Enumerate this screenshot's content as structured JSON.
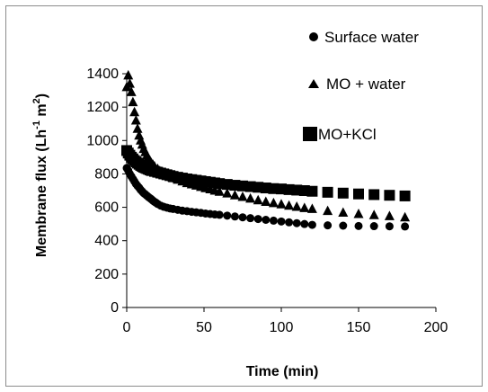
{
  "chart_data": {
    "type": "scatter",
    "xlabel": "Time (min)",
    "ylabel_main": "Membrane flux (Lh",
    "ylabel_sup1": "-1",
    "ylabel_mid": " m",
    "ylabel_sup2": "2",
    "ylabel_end": ")",
    "xlim": [
      0,
      200
    ],
    "ylim": [
      0,
      1400
    ],
    "x_ticks": [
      0,
      50,
      100,
      150,
      200
    ],
    "y_ticks": [
      0,
      200,
      400,
      600,
      800,
      1000,
      1200,
      1400
    ],
    "grid": false,
    "legend_position": "top-right",
    "series": [
      {
        "name": "Surface water",
        "marker": "circle",
        "color": "#000000",
        "points": [
          [
            0,
            835
          ],
          [
            1,
            820
          ],
          [
            2,
            800
          ],
          [
            3,
            785
          ],
          [
            4,
            770
          ],
          [
            5,
            755
          ],
          [
            6,
            740
          ],
          [
            7,
            728
          ],
          [
            8,
            718
          ],
          [
            9,
            705
          ],
          [
            10,
            695
          ],
          [
            11,
            685
          ],
          [
            12,
            678
          ],
          [
            13,
            670
          ],
          [
            14,
            662
          ],
          [
            15,
            655
          ],
          [
            16,
            648
          ],
          [
            17,
            640
          ],
          [
            18,
            633
          ],
          [
            19,
            627
          ],
          [
            20,
            620
          ],
          [
            22,
            610
          ],
          [
            24,
            603
          ],
          [
            26,
            598
          ],
          [
            28,
            593
          ],
          [
            30,
            590
          ],
          [
            33,
            585
          ],
          [
            36,
            580
          ],
          [
            39,
            577
          ],
          [
            42,
            573
          ],
          [
            45,
            570
          ],
          [
            48,
            567
          ],
          [
            51,
            563
          ],
          [
            54,
            560
          ],
          [
            57,
            557
          ],
          [
            60,
            555
          ],
          [
            65,
            550
          ],
          [
            70,
            545
          ],
          [
            75,
            540
          ],
          [
            80,
            535
          ],
          [
            85,
            530
          ],
          [
            90,
            525
          ],
          [
            95,
            520
          ],
          [
            100,
            515
          ],
          [
            105,
            510
          ],
          [
            110,
            505
          ],
          [
            115,
            500
          ],
          [
            120,
            495
          ],
          [
            130,
            492
          ],
          [
            140,
            490
          ],
          [
            150,
            488
          ],
          [
            160,
            487
          ],
          [
            170,
            486
          ],
          [
            180,
            485
          ]
        ]
      },
      {
        "name": "MO + water",
        "marker": "triangle",
        "color": "#000000",
        "points": [
          [
            0,
            1320
          ],
          [
            1,
            1390
          ],
          [
            2,
            1340
          ],
          [
            3,
            1290
          ],
          [
            4,
            1230
          ],
          [
            5,
            1170
          ],
          [
            6,
            1120
          ],
          [
            7,
            1070
          ],
          [
            8,
            1030
          ],
          [
            9,
            1000
          ],
          [
            10,
            975
          ],
          [
            11,
            950
          ],
          [
            12,
            930
          ],
          [
            13,
            910
          ],
          [
            14,
            895
          ],
          [
            15,
            880
          ],
          [
            16,
            865
          ],
          [
            17,
            855
          ],
          [
            18,
            845
          ],
          [
            20,
            830
          ],
          [
            22,
            815
          ],
          [
            24,
            805
          ],
          [
            26,
            795
          ],
          [
            28,
            785
          ],
          [
            30,
            775
          ],
          [
            33,
            765
          ],
          [
            36,
            755
          ],
          [
            39,
            745
          ],
          [
            42,
            738
          ],
          [
            45,
            730
          ],
          [
            48,
            722
          ],
          [
            51,
            715
          ],
          [
            54,
            708
          ],
          [
            57,
            700
          ],
          [
            60,
            693
          ],
          [
            65,
            683
          ],
          [
            70,
            672
          ],
          [
            75,
            662
          ],
          [
            80,
            652
          ],
          [
            85,
            642
          ],
          [
            90,
            633
          ],
          [
            95,
            625
          ],
          [
            100,
            618
          ],
          [
            105,
            610
          ],
          [
            110,
            603
          ],
          [
            115,
            596
          ],
          [
            120,
            590
          ],
          [
            130,
            578
          ],
          [
            140,
            568
          ],
          [
            150,
            560
          ],
          [
            160,
            553
          ],
          [
            170,
            547
          ],
          [
            180,
            540
          ]
        ]
      },
      {
        "name": "MO+KCl",
        "marker": "square",
        "color": "#000000",
        "points": [
          [
            0,
            940
          ],
          [
            1,
            925
          ],
          [
            2,
            912
          ],
          [
            3,
            900
          ],
          [
            4,
            890
          ],
          [
            5,
            880
          ],
          [
            6,
            872
          ],
          [
            7,
            865
          ],
          [
            8,
            858
          ],
          [
            9,
            851
          ],
          [
            10,
            845
          ],
          [
            11,
            840
          ],
          [
            12,
            836
          ],
          [
            13,
            832
          ],
          [
            14,
            828
          ],
          [
            15,
            824
          ],
          [
            16,
            820
          ],
          [
            18,
            815
          ],
          [
            20,
            810
          ],
          [
            22,
            805
          ],
          [
            24,
            800
          ],
          [
            26,
            795
          ],
          [
            28,
            790
          ],
          [
            30,
            785
          ],
          [
            33,
            780
          ],
          [
            36,
            775
          ],
          [
            39,
            770
          ],
          [
            42,
            766
          ],
          [
            45,
            762
          ],
          [
            48,
            758
          ],
          [
            51,
            754
          ],
          [
            54,
            750
          ],
          [
            57,
            746
          ],
          [
            60,
            742
          ],
          [
            65,
            737
          ],
          [
            70,
            732
          ],
          [
            75,
            728
          ],
          [
            80,
            724
          ],
          [
            85,
            720
          ],
          [
            90,
            716
          ],
          [
            95,
            712
          ],
          [
            100,
            710
          ],
          [
            105,
            706
          ],
          [
            110,
            703
          ],
          [
            115,
            700
          ],
          [
            120,
            696
          ],
          [
            130,
            690
          ],
          [
            140,
            685
          ],
          [
            150,
            680
          ],
          [
            160,
            676
          ],
          [
            170,
            672
          ],
          [
            180,
            668
          ]
        ]
      }
    ]
  }
}
